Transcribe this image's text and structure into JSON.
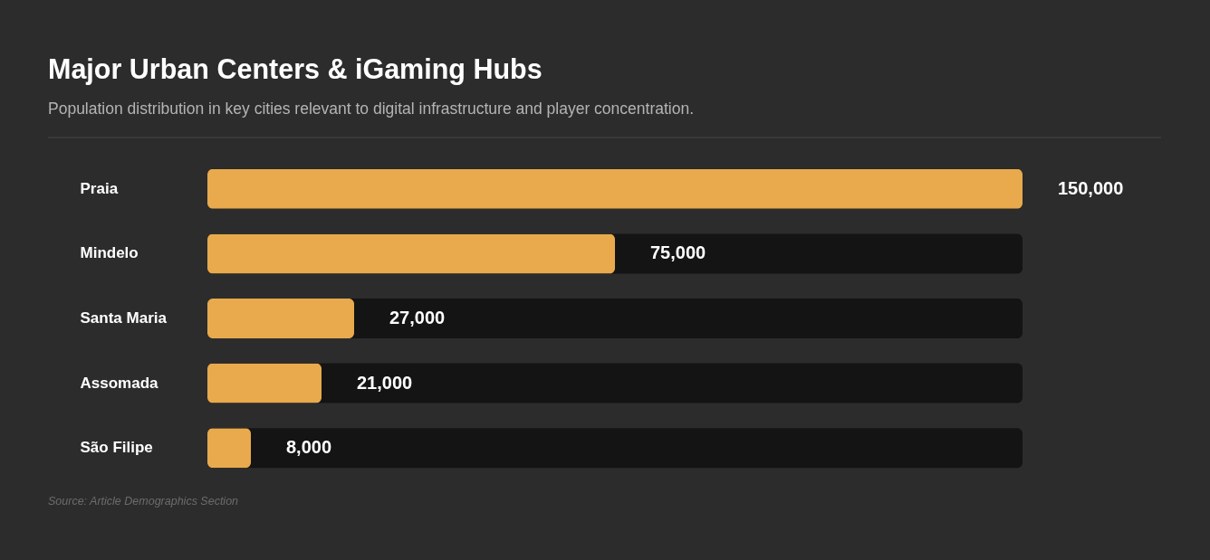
{
  "chart_data": {
    "type": "bar",
    "orientation": "horizontal",
    "title": "Major Urban Centers & iGaming Hubs",
    "subtitle": "Population distribution in key cities relevant to digital infrastructure and player concentration.",
    "categories": [
      "Praia",
      "Mindelo",
      "Santa Maria",
      "Assomada",
      "São Filipe"
    ],
    "values": [
      150000,
      75000,
      27000,
      21000,
      8000
    ],
    "value_labels": [
      "150,000",
      "75,000",
      "27,000",
      "21,000",
      "8,000"
    ],
    "color": "#e8aa4d",
    "tick_labels": "y",
    "annotations": [
      "Source: Article Demographics Section"
    ]
  }
}
